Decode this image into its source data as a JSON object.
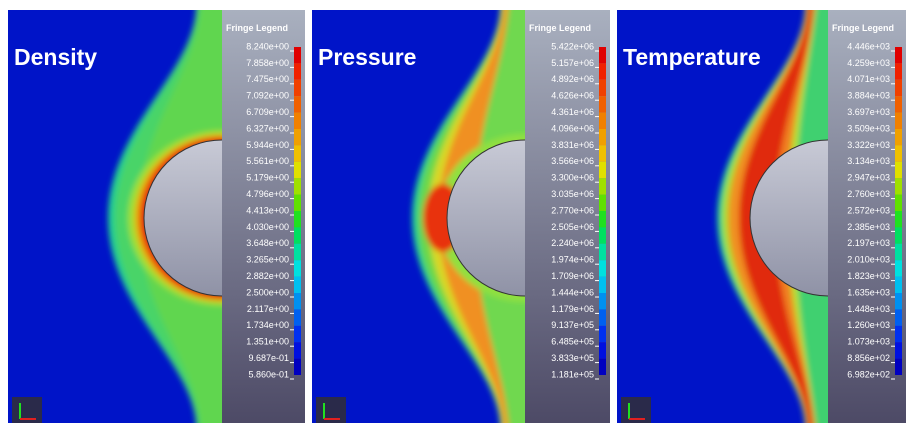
{
  "panels": [
    {
      "title": "Density",
      "legend_title": "Fringe Legend",
      "legend_labels": [
        "8.240e+00",
        "7.858e+00",
        "7.475e+00",
        "7.092e+00",
        "6.709e+00",
        "6.327e+00",
        "5.944e+00",
        "5.561e+00",
        "5.179e+00",
        "4.796e+00",
        "4.413e+00",
        "4.030e+00",
        "3.648e+00",
        "3.265e+00",
        "2.882e+00",
        "2.500e+00",
        "2.117e+00",
        "1.734e+00",
        "1.351e+00",
        "9.687e-01",
        "5.860e-01"
      ]
    },
    {
      "title": "Pressure",
      "legend_title": "Fringe Legend",
      "legend_labels": [
        "5.422e+06",
        "5.157e+06",
        "4.892e+06",
        "4.626e+06",
        "4.361e+06",
        "4.096e+06",
        "3.831e+06",
        "3.566e+06",
        "3.300e+06",
        "3.035e+06",
        "2.770e+06",
        "2.505e+06",
        "2.240e+06",
        "1.974e+06",
        "1.709e+06",
        "1.444e+06",
        "1.179e+06",
        "9.137e+05",
        "6.485e+05",
        "3.833e+05",
        "1.181e+05"
      ]
    },
    {
      "title": "Temperature",
      "legend_title": "Fringe Legend",
      "legend_labels": [
        "4.446e+03",
        "4.259e+03",
        "4.071e+03",
        "3.884e+03",
        "3.697e+03",
        "3.509e+03",
        "3.322e+03",
        "3.134e+03",
        "2.947e+03",
        "2.760e+03",
        "2.572e+03",
        "2.385e+03",
        "2.197e+03",
        "2.010e+03",
        "1.823e+03",
        "1.635e+03",
        "1.448e+03",
        "1.260e+03",
        "1.073e+03",
        "8.856e+02",
        "6.982e+02"
      ]
    }
  ]
}
